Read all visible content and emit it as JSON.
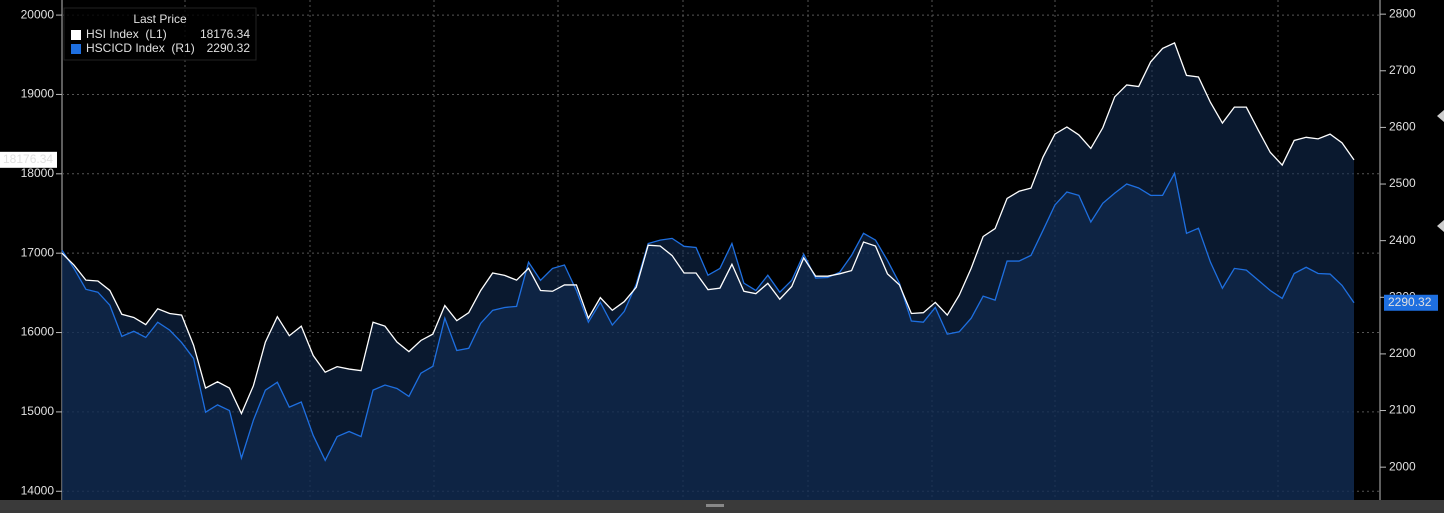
{
  "chart_data": {
    "type": "line",
    "legend_title": "Last Price",
    "series": [
      {
        "name": "HSI Index  (L1)",
        "color": "#ffffff",
        "axis": "y",
        "values": [
          17000,
          16850,
          16660,
          16650,
          16530,
          16230,
          16190,
          16100,
          16300,
          16240,
          16220,
          15840,
          15300,
          15380,
          15300,
          14980,
          15330,
          15880,
          16200,
          15960,
          16080,
          15710,
          15500,
          15570,
          15540,
          15520,
          16130,
          16080,
          15880,
          15760,
          15900,
          15980,
          16340,
          16150,
          16250,
          16530,
          16750,
          16720,
          16660,
          16810,
          16530,
          16520,
          16600,
          16600,
          16180,
          16440,
          16280,
          16390,
          16570,
          17100,
          17090,
          16970,
          16750,
          16750,
          16540,
          16560,
          16860,
          16520,
          16490,
          16620,
          16420,
          16580,
          16940,
          16710,
          16710,
          16740,
          16780,
          17140,
          17090,
          16740,
          16600,
          16240,
          16250,
          16380,
          16220,
          16470,
          16810,
          17210,
          17310,
          17690,
          17780,
          17820,
          18210,
          18500,
          18590,
          18490,
          18320,
          18580,
          18970,
          19120,
          19100,
          19410,
          19580,
          19650,
          19240,
          19220,
          18900,
          18640,
          18840,
          18840,
          18550,
          18270,
          18110,
          18420,
          18460,
          18440,
          18500,
          18390,
          18176.34
        ]
      },
      {
        "name": "HSCICD Index  (R1)",
        "color": "#1e6fe0",
        "axis": "y2",
        "values": [
          2383,
          2351,
          2314,
          2309,
          2286,
          2231,
          2240,
          2229,
          2256,
          2242,
          2220,
          2192,
          2097,
          2110,
          2100,
          2016,
          2083,
          2136,
          2150,
          2106,
          2115,
          2056,
          2012,
          2054,
          2063,
          2054,
          2136,
          2145,
          2139,
          2125,
          2166,
          2178,
          2263,
          2206,
          2210,
          2254,
          2277,
          2282,
          2284,
          2362,
          2330,
          2351,
          2357,
          2312,
          2256,
          2291,
          2251,
          2275,
          2323,
          2395,
          2401,
          2404,
          2390,
          2388,
          2339,
          2351,
          2395,
          2325,
          2312,
          2339,
          2309,
          2330,
          2376,
          2334,
          2335,
          2344,
          2374,
          2413,
          2401,
          2365,
          2325,
          2258,
          2256,
          2282,
          2235,
          2239,
          2263,
          2302,
          2295,
          2364,
          2364,
          2374,
          2418,
          2463,
          2486,
          2480,
          2433,
          2466,
          2484,
          2500,
          2493,
          2480,
          2480,
          2519,
          2413,
          2422,
          2362,
          2316,
          2351,
          2348,
          2330,
          2312,
          2298,
          2342,
          2353,
          2342,
          2341,
          2321,
          2290.32
        ]
      }
    ],
    "ylim": [
      13890,
      20190
    ],
    "yticks": [
      14000,
      15000,
      16000,
      17000,
      18000,
      19000,
      20000
    ],
    "y2lim": [
      1942,
      2825
    ],
    "y2ticks": [
      2000,
      2100,
      2200,
      2300,
      2400,
      2500,
      2600,
      2700,
      2800
    ],
    "grid": true
  }
}
